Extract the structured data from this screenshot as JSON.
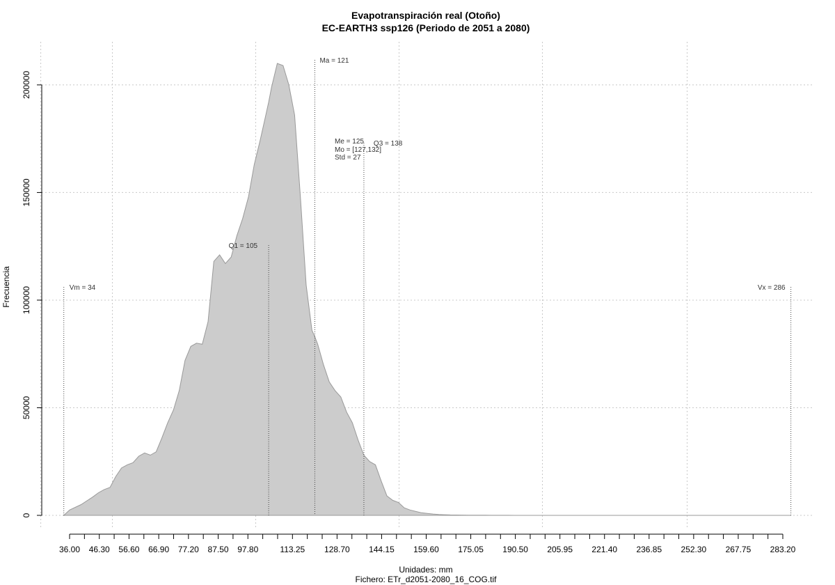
{
  "chart_data": {
    "type": "area",
    "title": "Evapotranspiración real (Otoño)",
    "subtitle": "EC-EARTH3 ssp126 (Periodo de 2051 a 2080)",
    "xlabel": "Unidades: mm",
    "ylabel": "Frecuencia",
    "caption": "Fichero: ETr_d2051-2080_16_COG.tif",
    "xlim": [
      34,
      286
    ],
    "ylim": [
      0,
      210000
    ],
    "x_ticks": [
      "36.00",
      "46.30",
      "56.60",
      "66.90",
      "77.20",
      "87.50",
      "97.80",
      "113.25",
      "128.70",
      "144.15",
      "159.60",
      "175.05",
      "190.50",
      "205.95",
      "221.40",
      "236.85",
      "252.30",
      "267.75",
      "283.20"
    ],
    "y_ticks": [
      0,
      50000,
      100000,
      150000,
      200000
    ],
    "grid": true,
    "fill_color": "#cccccc",
    "line_color": "#999999",
    "series": [
      {
        "x": [
          34,
          36,
          40,
          44,
          46,
          48,
          50,
          52,
          54,
          56,
          58,
          60,
          62,
          64,
          66,
          68,
          70,
          72,
          74,
          76,
          78,
          80,
          82,
          84,
          86,
          88,
          90,
          92,
          94,
          96,
          98,
          100,
          102,
          104,
          105,
          106,
          108,
          110,
          112,
          114,
          116,
          118,
          120,
          121,
          122,
          124,
          126,
          128,
          130,
          132,
          134,
          136,
          138,
          140,
          142,
          144,
          146,
          148,
          150,
          152,
          154,
          156,
          158,
          160,
          162,
          164,
          166,
          168,
          170,
          172,
          174,
          176,
          178,
          180,
          182,
          184,
          186,
          188,
          190,
          192,
          194,
          196,
          198,
          200,
          205,
          210,
          220,
          240,
          260,
          286
        ],
        "y": [
          0,
          2500,
          5000,
          8500,
          10500,
          12000,
          13000,
          18000,
          22000,
          23500,
          24500,
          27500,
          29000,
          28000,
          29500,
          36000,
          43000,
          49000,
          58000,
          72000,
          78500,
          80000,
          79500,
          90000,
          118000,
          121000,
          117000,
          120000,
          130000,
          138000,
          148000,
          163000,
          174000,
          186000,
          192000,
          199000,
          210000,
          209000,
          200000,
          186000,
          148000,
          107000,
          86000,
          83000,
          79500,
          70000,
          62000,
          58000,
          55000,
          48000,
          43000,
          35000,
          28000,
          25000,
          23500,
          16000,
          9000,
          7000,
          6000,
          3500,
          2500,
          1800,
          1200,
          900,
          600,
          400,
          300,
          200,
          150,
          120,
          100,
          80,
          60,
          50,
          40,
          30,
          25,
          20,
          15,
          12,
          10,
          8,
          6,
          5,
          4,
          3,
          2,
          1,
          0,
          0
        ]
      }
    ],
    "vlines": [
      {
        "label": "Vm = 34",
        "x": 34
      },
      {
        "label": "Q1 = 105",
        "x": 105
      },
      {
        "label": "Ma = 121",
        "x": 121
      },
      {
        "label": "Q3 = 138",
        "x": 138
      },
      {
        "label": "Vx = 286",
        "x": 286
      }
    ],
    "stats": {
      "me": "Me = 125",
      "mo": "Mo = [127,132]",
      "std": "Std = 27"
    }
  }
}
